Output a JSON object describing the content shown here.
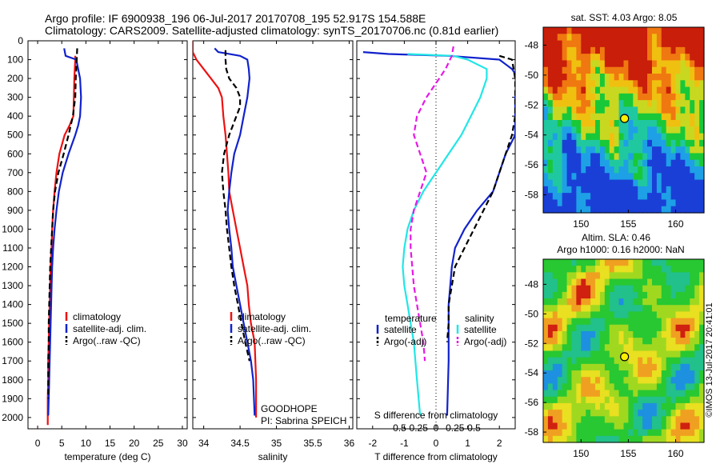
{
  "header": {
    "line1": "Argo profile: IF 6900938_196 06-Jul-2017 20170708_195 52.917S 154.588E",
    "line2": "Climatology: CARS2009. Satellite-adjusted climatology: synTS_20170706.nc (0.81d earlier)"
  },
  "colors": {
    "climatology": "#ee1111",
    "satellite": "#1122cc",
    "argo": "#000000",
    "satellite_salinity": "#22e6e6",
    "argo_salinity": "#e619e6",
    "marker": "#ffee00"
  },
  "chart_data": [
    {
      "type": "line",
      "id": "temperature-profile",
      "xlabel": "temperature (deg C)",
      "ylabel": "",
      "xlim": [
        -2,
        31
      ],
      "ylim": [
        2060,
        0
      ],
      "xticks": [
        0,
        5,
        10,
        15,
        20,
        25,
        30
      ],
      "yticks": [
        0,
        100,
        200,
        300,
        400,
        500,
        600,
        700,
        800,
        900,
        1000,
        1100,
        1200,
        1300,
        1400,
        1500,
        1600,
        1700,
        1800,
        1900,
        2000
      ],
      "y_axis_labels": true,
      "legend": [
        "climatology",
        "satellite-adj. clim.",
        "Argo(..raw -QC)"
      ],
      "series": [
        {
          "name": "climatology",
          "style": "solid",
          "color_key": "climatology",
          "x": [
            7.8,
            7.8,
            7.6,
            7.5,
            7.4,
            6.6,
            5.6,
            4.5,
            3.9,
            3.5,
            3.2,
            3.0,
            2.9,
            2.7,
            2.6,
            2.5,
            2.4,
            2.3,
            2.2,
            2.2,
            2.1,
            2.1
          ],
          "y": [
            80,
            100,
            200,
            300,
            400,
            450,
            500,
            600,
            700,
            800,
            900,
            1000,
            1100,
            1200,
            1300,
            1400,
            1500,
            1600,
            1700,
            1800,
            1900,
            2040
          ]
        },
        {
          "name": "satellite-adj. clim.",
          "style": "solid",
          "color_key": "satellite",
          "x": [
            5.5,
            5.8,
            8.0,
            8.8,
            9.0,
            8.8,
            8.4,
            7.8,
            6.4,
            5.2,
            4.4,
            3.9,
            3.5,
            3.2,
            3.0,
            2.9,
            2.8,
            2.7,
            2.6,
            2.5,
            2.4,
            2.3,
            2.2
          ],
          "y": [
            40,
            80,
            100,
            200,
            300,
            400,
            450,
            500,
            600,
            700,
            800,
            900,
            1000,
            1100,
            1200,
            1300,
            1400,
            1500,
            1600,
            1700,
            1800,
            1900,
            1990
          ]
        },
        {
          "name": "Argo(..raw -QC)",
          "style": "dashed",
          "color_key": "argo",
          "x": [
            8.2,
            8.1,
            8.0,
            7.9,
            7.8,
            7.3,
            6.4,
            5.4,
            4.3,
            3.6,
            3.2,
            3.0,
            2.8,
            2.6,
            2.5,
            2.4,
            2.3,
            2.3,
            2.2,
            2.2,
            2.2
          ],
          "y": [
            40,
            100,
            150,
            200,
            300,
            400,
            500,
            600,
            700,
            800,
            900,
            1000,
            1100,
            1200,
            1300,
            1400,
            1500,
            1600,
            1700,
            1800,
            1900
          ]
        }
      ]
    },
    {
      "type": "line",
      "id": "salinity-profile",
      "xlabel": "salinity",
      "ylabel": "",
      "xlim": [
        33.85,
        36.05
      ],
      "ylim": [
        2060,
        0
      ],
      "xticks": [
        34,
        34.5,
        35,
        35.5,
        36
      ],
      "y_axis_labels": false,
      "legend": [
        "climatology",
        "satellite-adj. clim.",
        "Argo(..raw -QC)"
      ],
      "annotation": [
        "GOODHOPE",
        "PI: Sabrina SPEICH"
      ],
      "series": [
        {
          "name": "climatology",
          "style": "solid",
          "color_key": "climatology",
          "x": [
            33.85,
            33.85,
            33.9,
            34.0,
            34.1,
            34.2,
            34.25,
            34.27,
            34.3,
            34.32,
            34.34,
            34.35,
            34.4,
            34.45,
            34.5,
            34.55,
            34.6,
            34.62,
            34.65,
            34.7,
            34.71,
            34.72,
            34.72
          ],
          "y": [
            0,
            60,
            100,
            150,
            200,
            250,
            300,
            400,
            500,
            600,
            700,
            800,
            900,
            1000,
            1100,
            1200,
            1300,
            1400,
            1500,
            1600,
            1700,
            1800,
            2000
          ]
        },
        {
          "name": "satellite-adj. clim.",
          "style": "solid",
          "color_key": "satellite",
          "x": [
            34.15,
            34.2,
            34.5,
            34.6,
            34.62,
            34.63,
            34.6,
            34.55,
            34.5,
            34.42,
            34.38,
            34.35,
            34.33,
            34.35,
            34.38,
            34.4,
            34.45,
            34.5,
            34.55,
            34.6,
            34.65,
            34.68,
            34.7
          ],
          "y": [
            40,
            60,
            80,
            100,
            150,
            200,
            300,
            400,
            500,
            600,
            700,
            800,
            900,
            1000,
            1100,
            1200,
            1300,
            1400,
            1500,
            1600,
            1700,
            1800,
            1990
          ]
        },
        {
          "name": "Argo(..raw -QC)",
          "style": "dashed",
          "color_key": "argo",
          "x": [
            34.3,
            34.3,
            34.31,
            34.35,
            34.45,
            34.5,
            34.5,
            34.45,
            34.35,
            34.28,
            34.25,
            34.27,
            34.3,
            34.32,
            34.35,
            34.38,
            34.42,
            34.47,
            34.52,
            34.57,
            34.63
          ],
          "y": [
            50,
            100,
            150,
            200,
            250,
            300,
            350,
            400,
            500,
            600,
            700,
            800,
            900,
            1000,
            1100,
            1200,
            1300,
            1400,
            1500,
            1600,
            1700
          ]
        }
      ]
    },
    {
      "type": "line",
      "id": "difference-profile",
      "xlabel": "T difference from climatology",
      "secondary_xlabel": "S difference from climatology",
      "ylabel": "",
      "xlim": [
        -2.5,
        2.5
      ],
      "ylim": [
        2060,
        0
      ],
      "xticks": [
        -2,
        -1,
        0,
        1,
        2
      ],
      "secondary_xticks": [
        -0.5,
        -0.25,
        0,
        0.25,
        0.5
      ],
      "y_axis_labels": false,
      "zero_line": "dotted",
      "legend": {
        "temperature": [
          "satellite",
          "Argo(-adj)"
        ],
        "salinity": [
          "satellite",
          "Argo(-adj)"
        ]
      },
      "legend_titles": [
        "temperature",
        "salinity"
      ],
      "series": [
        {
          "name": "temperature satellite",
          "style": "solid",
          "color_key": "satellite",
          "x": [
            -2.3,
            -1.5,
            0.4,
            2.0,
            2.4,
            2.6,
            2.5,
            2.5,
            2.5,
            2.2,
            1.8,
            1.3,
            0.9,
            0.6,
            0.5,
            0.45,
            0.4,
            0.4,
            0.4,
            0.35
          ],
          "y": [
            60,
            70,
            80,
            100,
            150,
            200,
            300,
            400,
            500,
            600,
            800,
            900,
            1000,
            1100,
            1200,
            1300,
            1400,
            1500,
            1700,
            1990
          ]
        },
        {
          "name": "temperature Argo(-adj)",
          "style": "dashed",
          "color_key": "argo",
          "x": [
            2.0,
            2.4,
            2.5,
            2.5,
            2.5,
            2.4,
            2.2,
            2.0,
            1.8,
            1.5,
            1.2,
            0.9,
            0.6,
            0.5,
            0.4,
            0.4,
            0.35
          ],
          "y": [
            80,
            100,
            200,
            300,
            400,
            500,
            600,
            700,
            800,
            900,
            1000,
            1100,
            1200,
            1300,
            1400,
            1500,
            1600
          ]
        },
        {
          "name": "salinity satellite",
          "style": "solid",
          "color_key": "satellite_salinity",
          "x": [
            -0.9,
            0.55,
            1.0,
            1.6,
            1.6,
            1.4,
            1.1,
            0.8,
            0.4,
            0.0,
            -0.4,
            -0.7,
            -0.9,
            -1.0,
            -1.05,
            -1.0,
            -0.9,
            -0.8,
            -0.7,
            -0.6,
            -0.5
          ],
          "y": [
            70,
            80,
            100,
            150,
            200,
            300,
            400,
            500,
            600,
            700,
            800,
            900,
            1000,
            1100,
            1200,
            1300,
            1400,
            1500,
            1600,
            1800,
            1990
          ]
        },
        {
          "name": "salinity Argo(-adj)",
          "style": "dashed",
          "color_key": "argo_salinity",
          "x": [
            0.55,
            0.5,
            0.3,
            0.1,
            -0.3,
            -0.6,
            -0.7,
            -0.5,
            -0.3,
            -0.5,
            -0.7,
            -0.8,
            -0.8,
            -0.7,
            -0.6,
            -0.5,
            -0.4,
            -0.35
          ],
          "y": [
            30,
            80,
            150,
            200,
            300,
            400,
            500,
            600,
            700,
            800,
            900,
            1000,
            1100,
            1300,
            1400,
            1500,
            1600,
            1700
          ]
        }
      ]
    },
    {
      "type": "heatmap",
      "id": "sst-map",
      "title": "sat. SST: 4.03 Argo: 8.05",
      "xlim": [
        146,
        163
      ],
      "ylim": [
        -59.2,
        -46.8
      ],
      "xticks": [
        150,
        155,
        160
      ],
      "yticks": [
        -48,
        -50,
        -52,
        -54,
        -56,
        -58
      ],
      "marker": {
        "lon": 154.6,
        "lat": -52.9
      }
    },
    {
      "type": "heatmap",
      "id": "sla-map",
      "title": "Altim. SLA: 0.46",
      "subtitle": "Argo h1000: 0.16 h2000: NaN",
      "xlim": [
        146,
        163
      ],
      "ylim": [
        -58.7,
        -46.3
      ],
      "xticks": [
        150,
        155,
        160
      ],
      "yticks": [
        -48,
        -50,
        -52,
        -54,
        -56,
        -58
      ],
      "marker": {
        "lon": 154.6,
        "lat": -52.9
      },
      "side_label": "©IMOS 13-Jul-2017 20:41:01"
    }
  ]
}
